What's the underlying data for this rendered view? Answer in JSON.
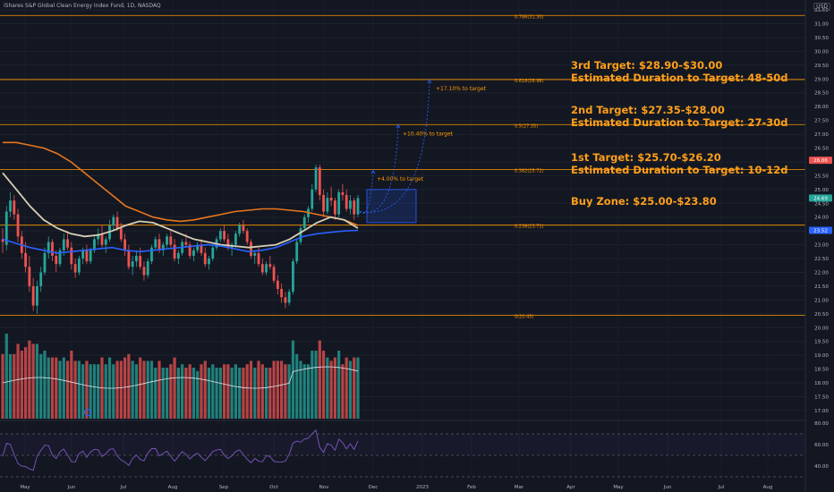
{
  "header": {
    "title": "iShares S&P Global Clean Energy Index Fund, 1D, NASDAQ",
    "currency": "USD"
  },
  "annotations": [
    {
      "line1": "3rd Target: $28.90-$30.00",
      "line2": "Estimated Duration to Target: 48-50d"
    },
    {
      "line1": "2nd Target: $27.35-$28.00",
      "line2": "Estimated Duration to Target: 27-30d"
    },
    {
      "line1": "1st Target: $25.70-$26.20",
      "line2": "Estimated Duration to Target: 10-12d"
    },
    {
      "line1": "Buy Zone: $25.00-$23.80",
      "line2": ""
    }
  ],
  "colors": {
    "background": "#131722",
    "up": "#26a69a",
    "down": "#ef5350",
    "fib": "#ff9800",
    "annotation": "#ff9f1a",
    "ma_long": "#e8761c",
    "ma_mid": "#d6cfb4",
    "ma_short": "#2962ff",
    "rsi": "#7e57c2",
    "projection": "#2962ff"
  },
  "chart_data": [
    {
      "type": "candlestick",
      "title": "iShares S&P Global Clean Energy Index Fund, 1D, NASDAQ",
      "x_ticks": [
        "May",
        "Jun",
        "Jul",
        "Aug",
        "Sep",
        "Oct",
        "Nov",
        "Dec",
        "2023",
        "Feb",
        "Mar",
        "Apr",
        "May",
        "Jun",
        "Jul",
        "Aug"
      ],
      "y_ticks": [
        17.0,
        17.5,
        18.0,
        18.5,
        19.0,
        19.5,
        20.0,
        20.5,
        21.0,
        21.5,
        22.0,
        22.5,
        23.0,
        23.5,
        24.0,
        24.5,
        25.0,
        25.5,
        26.0,
        26.5,
        27.0,
        27.5,
        28.0,
        28.5,
        29.0,
        29.5,
        30.0,
        30.5,
        31.0,
        31.5
      ],
      "ylim": [
        16.9,
        31.6
      ],
      "price_labels": [
        {
          "text": "26.06",
          "value": 26.06
        },
        {
          "text": "24.69",
          "value": 24.69
        },
        {
          "text": "23.52",
          "value": 23.52
        }
      ],
      "fib_levels": [
        {
          "label": "0.786(31.30)",
          "value": 31.3
        },
        {
          "label": "0.618(28.98)",
          "value": 28.98
        },
        {
          "label": "0.5(27.35)",
          "value": 27.35
        },
        {
          "label": "0.382(25.72)",
          "value": 25.72
        },
        {
          "label": "0.236(23.71)",
          "value": 23.71
        },
        {
          "label": "0(20.45)",
          "value": 20.45
        }
      ],
      "projections": [
        {
          "label": "+4.00% to target",
          "target": 25.7
        },
        {
          "label": "+10.40% to target",
          "target": 27.35
        },
        {
          "label": "+17.10% to target",
          "target": 28.98
        }
      ],
      "buy_zone": [
        23.8,
        25.0
      ],
      "ohlc": [
        [
          23.2,
          23.6,
          22.7,
          23.1
        ],
        [
          23.0,
          24.4,
          22.8,
          24.2
        ],
        [
          24.2,
          24.9,
          24.0,
          24.6
        ],
        [
          24.6,
          24.8,
          23.9,
          24.1
        ],
        [
          24.1,
          24.3,
          23.1,
          23.3
        ],
        [
          23.3,
          23.5,
          22.5,
          22.7
        ],
        [
          22.7,
          23.1,
          22.0,
          22.2
        ],
        [
          22.2,
          22.6,
          21.3,
          21.5
        ],
        [
          21.5,
          21.8,
          20.6,
          20.8
        ],
        [
          20.8,
          21.7,
          20.5,
          21.5
        ],
        [
          21.5,
          22.2,
          21.3,
          22.0
        ],
        [
          22.0,
          22.9,
          21.9,
          22.7
        ],
        [
          22.7,
          23.3,
          22.5,
          23.1
        ],
        [
          23.1,
          23.2,
          22.4,
          22.6
        ],
        [
          22.6,
          22.8,
          22.0,
          22.3
        ],
        [
          22.3,
          22.9,
          22.2,
          22.8
        ],
        [
          22.8,
          23.4,
          22.6,
          23.2
        ],
        [
          23.2,
          23.5,
          22.8,
          22.9
        ],
        [
          22.9,
          23.1,
          22.1,
          22.3
        ],
        [
          22.3,
          22.5,
          21.8,
          22.0
        ],
        [
          22.0,
          22.6,
          21.9,
          22.5
        ],
        [
          22.5,
          22.9,
          22.3,
          22.8
        ],
        [
          22.8,
          23.0,
          22.3,
          22.4
        ],
        [
          22.4,
          22.9,
          22.3,
          22.8
        ],
        [
          22.8,
          23.3,
          22.7,
          23.2
        ],
        [
          23.2,
          23.6,
          23.0,
          23.4
        ],
        [
          23.4,
          23.7,
          22.9,
          23.0
        ],
        [
          23.0,
          23.3,
          22.7,
          23.2
        ],
        [
          23.2,
          23.9,
          23.1,
          23.7
        ],
        [
          23.7,
          24.1,
          23.5,
          24.0
        ],
        [
          24.0,
          24.2,
          23.5,
          23.6
        ],
        [
          23.6,
          23.8,
          23.1,
          23.2
        ],
        [
          23.2,
          23.4,
          22.6,
          22.8
        ],
        [
          22.8,
          23.0,
          22.1,
          22.2
        ],
        [
          22.2,
          22.6,
          21.9,
          22.4
        ],
        [
          22.4,
          22.8,
          22.2,
          22.6
        ],
        [
          22.6,
          22.9,
          22.1,
          22.2
        ],
        [
          22.2,
          22.4,
          21.7,
          21.9
        ],
        [
          21.9,
          22.5,
          21.8,
          22.4
        ],
        [
          22.4,
          23.0,
          22.3,
          22.9
        ],
        [
          22.9,
          23.3,
          22.8,
          23.2
        ],
        [
          23.2,
          23.4,
          22.7,
          22.8
        ],
        [
          22.8,
          23.1,
          22.6,
          23.0
        ],
        [
          23.0,
          23.4,
          22.9,
          23.3
        ],
        [
          23.3,
          23.5,
          22.9,
          23.0
        ],
        [
          23.0,
          23.2,
          22.4,
          22.5
        ],
        [
          22.5,
          22.8,
          22.3,
          22.7
        ],
        [
          22.7,
          23.2,
          22.6,
          23.1
        ],
        [
          23.1,
          23.4,
          22.9,
          23.0
        ],
        [
          23.0,
          23.1,
          22.5,
          22.6
        ],
        [
          22.6,
          22.9,
          22.4,
          22.8
        ],
        [
          22.8,
          23.1,
          22.7,
          23.0
        ],
        [
          23.0,
          23.2,
          22.6,
          22.7
        ],
        [
          22.7,
          22.9,
          22.2,
          22.3
        ],
        [
          22.3,
          22.6,
          22.1,
          22.5
        ],
        [
          22.5,
          23.0,
          22.4,
          22.9
        ],
        [
          22.9,
          23.3,
          22.8,
          23.2
        ],
        [
          23.2,
          23.6,
          23.1,
          23.5
        ],
        [
          23.5,
          23.7,
          23.1,
          23.2
        ],
        [
          23.2,
          23.4,
          22.8,
          22.9
        ],
        [
          22.9,
          23.1,
          22.6,
          23.0
        ],
        [
          23.0,
          23.5,
          22.9,
          23.4
        ],
        [
          23.4,
          23.8,
          23.3,
          23.7
        ],
        [
          23.7,
          23.9,
          23.4,
          23.5
        ],
        [
          23.5,
          23.6,
          23.0,
          23.1
        ],
        [
          23.1,
          23.2,
          22.5,
          22.6
        ],
        [
          22.6,
          22.8,
          22.3,
          22.7
        ],
        [
          22.7,
          22.9,
          22.2,
          22.3
        ],
        [
          22.3,
          22.5,
          21.9,
          22.0
        ],
        [
          22.0,
          22.4,
          21.9,
          22.3
        ],
        [
          22.3,
          22.6,
          22.1,
          22.2
        ],
        [
          22.2,
          22.3,
          21.6,
          21.7
        ],
        [
          21.7,
          21.9,
          21.2,
          21.4
        ],
        [
          21.4,
          21.6,
          20.9,
          21.1
        ],
        [
          21.1,
          21.3,
          20.7,
          20.9
        ],
        [
          20.9,
          21.4,
          20.8,
          21.3
        ],
        [
          21.3,
          22.5,
          21.2,
          22.4
        ],
        [
          22.4,
          23.2,
          22.3,
          23.1
        ],
        [
          23.1,
          23.7,
          23.0,
          23.6
        ],
        [
          23.6,
          24.1,
          23.5,
          24.0
        ],
        [
          24.0,
          24.4,
          23.8,
          24.3
        ],
        [
          24.3,
          25.2,
          24.2,
          25.0
        ],
        [
          25.0,
          25.9,
          24.9,
          25.8
        ],
        [
          25.8,
          25.9,
          24.6,
          24.8
        ],
        [
          24.8,
          25.0,
          24.0,
          24.2
        ],
        [
          24.2,
          24.9,
          24.1,
          24.7
        ],
        [
          24.7,
          25.1,
          24.4,
          24.6
        ],
        [
          24.6,
          24.7,
          23.9,
          24.1
        ],
        [
          24.1,
          25.0,
          24.0,
          24.9
        ],
        [
          24.9,
          25.2,
          24.6,
          24.8
        ],
        [
          24.8,
          25.0,
          24.2,
          24.3
        ],
        [
          24.3,
          24.8,
          24.1,
          24.6
        ],
        [
          24.6,
          24.7,
          23.9,
          24.1
        ],
        [
          24.1,
          24.8,
          24.0,
          24.69
        ]
      ],
      "ma_long": [
        26.7,
        26.7,
        26.6,
        26.5,
        26.3,
        26.0,
        25.6,
        25.2,
        24.8,
        24.4,
        24.2,
        24.0,
        23.9,
        23.85,
        23.9,
        24.0,
        24.1,
        24.2,
        24.25,
        24.3,
        24.3,
        24.25,
        24.2,
        24.1,
        24.0,
        23.9,
        23.7
      ],
      "ma_mid": [
        25.6,
        25.0,
        24.4,
        23.9,
        23.6,
        23.4,
        23.3,
        23.35,
        23.5,
        23.7,
        23.85,
        23.8,
        23.6,
        23.4,
        23.2,
        23.1,
        23.0,
        22.95,
        22.9,
        22.95,
        23.0,
        23.2,
        23.5,
        23.8,
        24.0,
        23.9,
        23.6
      ],
      "ma_short": [
        23.2,
        23.05,
        22.9,
        22.8,
        22.7,
        22.75,
        22.8,
        22.85,
        22.9,
        22.8,
        22.75,
        22.8,
        22.85,
        22.9,
        22.95,
        23.0,
        22.95,
        22.85,
        22.75,
        22.8,
        22.9,
        23.1,
        23.3,
        23.4,
        23.45,
        23.5,
        23.52
      ],
      "volume_note": "volume histogram with moving average",
      "rsi_levels": [
        70,
        50,
        30
      ],
      "rsi_ticks": [
        "80.00",
        "60.00",
        "40.00"
      ]
    }
  ]
}
